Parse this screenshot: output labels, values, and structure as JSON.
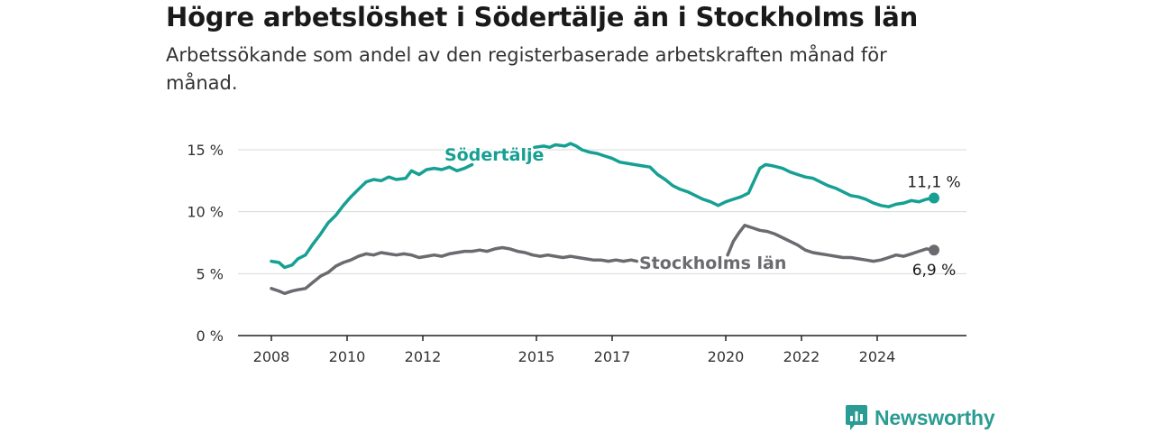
{
  "title": "Högre arbetslöshet i Södertälje än i Stockholms län",
  "subtitle": "Arbetssökande som andel av den registerbaserade arbetskraften månad för månad.",
  "brand": {
    "name": "Newsworthy",
    "icon": "newsworthy-logo-icon",
    "color": "#2b9c93"
  },
  "chart_data": {
    "type": "line",
    "ylim": [
      0,
      15
    ],
    "yticks": [
      0,
      5,
      10,
      15
    ],
    "ytick_labels": [
      "0 %",
      "5 %",
      "10 %",
      "15 %"
    ],
    "xlim": [
      2008,
      2025.8
    ],
    "xticks": [
      2008,
      2010,
      2012,
      2015,
      2017,
      2020,
      2022,
      2024
    ],
    "xtick_labels": [
      "2008",
      "2010",
      "2012",
      "2015",
      "2017",
      "2020",
      "2022",
      "2024"
    ],
    "grid": true,
    "series": [
      {
        "name": "Södertälje",
        "color": "#16a093",
        "end_label": "11,1 %",
        "segments": [
          [
            [
              2008.0,
              6.0
            ],
            [
              2008.2,
              5.9
            ],
            [
              2008.35,
              5.5
            ],
            [
              2008.55,
              5.7
            ],
            [
              2008.7,
              6.2
            ],
            [
              2008.9,
              6.5
            ],
            [
              2009.1,
              7.4
            ],
            [
              2009.3,
              8.2
            ],
            [
              2009.5,
              9.1
            ],
            [
              2009.7,
              9.7
            ],
            [
              2009.9,
              10.5
            ],
            [
              2010.1,
              11.2
            ],
            [
              2010.3,
              11.8
            ],
            [
              2010.5,
              12.4
            ],
            [
              2010.7,
              12.6
            ],
            [
              2010.9,
              12.5
            ],
            [
              2011.1,
              12.8
            ],
            [
              2011.3,
              12.6
            ],
            [
              2011.55,
              12.7
            ],
            [
              2011.7,
              13.3
            ],
            [
              2011.9,
              13.0
            ],
            [
              2012.1,
              13.4
            ],
            [
              2012.3,
              13.5
            ],
            [
              2012.5,
              13.4
            ],
            [
              2012.7,
              13.6
            ],
            [
              2012.9,
              13.3
            ],
            [
              2013.1,
              13.5
            ],
            [
              2013.3,
              13.8
            ]
          ],
          [
            [
              2014.95,
              15.2
            ],
            [
              2015.2,
              15.3
            ],
            [
              2015.35,
              15.2
            ],
            [
              2015.5,
              15.4
            ],
            [
              2015.75,
              15.3
            ],
            [
              2015.9,
              15.5
            ],
            [
              2016.05,
              15.3
            ],
            [
              2016.2,
              15.0
            ],
            [
              2016.4,
              14.8
            ],
            [
              2016.6,
              14.7
            ],
            [
              2016.8,
              14.5
            ],
            [
              2017.0,
              14.3
            ],
            [
              2017.2,
              14.0
            ],
            [
              2017.4,
              13.9
            ],
            [
              2017.6,
              13.8
            ],
            [
              2017.8,
              13.7
            ],
            [
              2018.0,
              13.6
            ],
            [
              2018.2,
              13.0
            ],
            [
              2018.4,
              12.6
            ],
            [
              2018.6,
              12.1
            ],
            [
              2018.8,
              11.8
            ],
            [
              2019.0,
              11.6
            ],
            [
              2019.2,
              11.3
            ],
            [
              2019.4,
              11.0
            ],
            [
              2019.6,
              10.8
            ],
            [
              2019.8,
              10.5
            ],
            [
              2020.0,
              10.8
            ],
            [
              2020.2,
              11.0
            ],
            [
              2020.4,
              11.2
            ],
            [
              2020.6,
              11.5
            ],
            [
              2020.75,
              12.5
            ],
            [
              2020.9,
              13.5
            ],
            [
              2021.05,
              13.8
            ],
            [
              2021.25,
              13.7
            ],
            [
              2021.5,
              13.5
            ],
            [
              2021.7,
              13.2
            ],
            [
              2021.9,
              13.0
            ],
            [
              2022.1,
              12.8
            ],
            [
              2022.3,
              12.7
            ],
            [
              2022.5,
              12.4
            ],
            [
              2022.7,
              12.1
            ],
            [
              2022.9,
              11.9
            ],
            [
              2023.1,
              11.6
            ],
            [
              2023.3,
              11.3
            ],
            [
              2023.5,
              11.2
            ],
            [
              2023.7,
              11.0
            ],
            [
              2023.9,
              10.7
            ],
            [
              2024.1,
              10.5
            ],
            [
              2024.3,
              10.4
            ],
            [
              2024.5,
              10.6
            ],
            [
              2024.7,
              10.7
            ],
            [
              2024.9,
              10.9
            ],
            [
              2025.1,
              10.8
            ],
            [
              2025.3,
              11.0
            ],
            [
              2025.5,
              11.1
            ]
          ]
        ]
      },
      {
        "name": "Stockholms län",
        "color": "#6b6a6f",
        "end_label": "6,9 %",
        "segments": [
          [
            [
              2008.0,
              3.8
            ],
            [
              2008.2,
              3.6
            ],
            [
              2008.35,
              3.4
            ],
            [
              2008.55,
              3.6
            ],
            [
              2008.7,
              3.7
            ],
            [
              2008.9,
              3.8
            ],
            [
              2009.1,
              4.3
            ],
            [
              2009.3,
              4.8
            ],
            [
              2009.5,
              5.1
            ],
            [
              2009.7,
              5.6
            ],
            [
              2009.9,
              5.9
            ],
            [
              2010.1,
              6.1
            ],
            [
              2010.3,
              6.4
            ],
            [
              2010.5,
              6.6
            ],
            [
              2010.7,
              6.5
            ],
            [
              2010.9,
              6.7
            ],
            [
              2011.1,
              6.6
            ],
            [
              2011.3,
              6.5
            ],
            [
              2011.5,
              6.6
            ],
            [
              2011.7,
              6.5
            ],
            [
              2011.9,
              6.3
            ],
            [
              2012.1,
              6.4
            ],
            [
              2012.3,
              6.5
            ],
            [
              2012.5,
              6.4
            ],
            [
              2012.7,
              6.6
            ],
            [
              2012.9,
              6.7
            ],
            [
              2013.1,
              6.8
            ],
            [
              2013.3,
              6.8
            ],
            [
              2013.5,
              6.9
            ],
            [
              2013.7,
              6.8
            ],
            [
              2013.9,
              7.0
            ],
            [
              2014.1,
              7.1
            ],
            [
              2014.3,
              7.0
            ],
            [
              2014.5,
              6.8
            ],
            [
              2014.7,
              6.7
            ],
            [
              2014.9,
              6.5
            ],
            [
              2015.1,
              6.4
            ],
            [
              2015.3,
              6.5
            ],
            [
              2015.5,
              6.4
            ],
            [
              2015.7,
              6.3
            ],
            [
              2015.9,
              6.4
            ],
            [
              2016.1,
              6.3
            ],
            [
              2016.3,
              6.2
            ],
            [
              2016.5,
              6.1
            ],
            [
              2016.7,
              6.1
            ],
            [
              2016.9,
              6.0
            ],
            [
              2017.1,
              6.1
            ],
            [
              2017.3,
              6.0
            ],
            [
              2017.5,
              6.1
            ],
            [
              2017.65,
              6.0
            ]
          ],
          [
            [
              2020.05,
              6.5
            ],
            [
              2020.2,
              7.6
            ],
            [
              2020.35,
              8.3
            ],
            [
              2020.5,
              8.9
            ],
            [
              2020.7,
              8.7
            ],
            [
              2020.9,
              8.5
            ],
            [
              2021.1,
              8.4
            ],
            [
              2021.3,
              8.2
            ],
            [
              2021.5,
              7.9
            ],
            [
              2021.7,
              7.6
            ],
            [
              2021.9,
              7.3
            ],
            [
              2022.1,
              6.9
            ],
            [
              2022.3,
              6.7
            ],
            [
              2022.5,
              6.6
            ],
            [
              2022.7,
              6.5
            ],
            [
              2022.9,
              6.4
            ],
            [
              2023.1,
              6.3
            ],
            [
              2023.3,
              6.3
            ],
            [
              2023.5,
              6.2
            ],
            [
              2023.7,
              6.1
            ],
            [
              2023.9,
              6.0
            ],
            [
              2024.1,
              6.1
            ],
            [
              2024.3,
              6.3
            ],
            [
              2024.5,
              6.5
            ],
            [
              2024.7,
              6.4
            ],
            [
              2024.9,
              6.6
            ],
            [
              2025.1,
              6.8
            ],
            [
              2025.3,
              7.0
            ],
            [
              2025.5,
              6.9
            ]
          ]
        ]
      }
    ]
  }
}
